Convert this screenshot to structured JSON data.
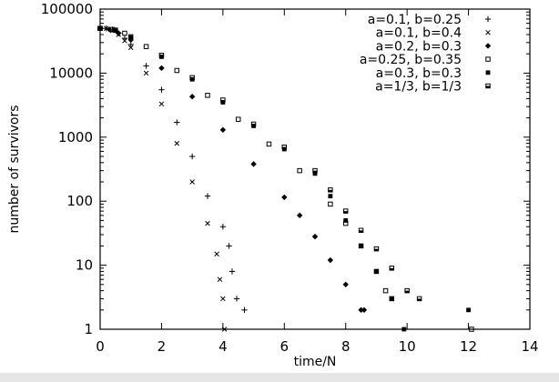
{
  "chart_data": {
    "type": "scatter",
    "title": "",
    "xlabel": "time/N",
    "ylabel": "number of survivors",
    "xlim": [
      0,
      14
    ],
    "ylim": [
      1,
      100000
    ],
    "yscale": "log",
    "grid": false,
    "legend_position": "top-right",
    "x_ticks": [
      0,
      2,
      4,
      6,
      8,
      10,
      12,
      14
    ],
    "x_tick_labels": [
      "0",
      "2",
      "4",
      "6",
      "8",
      "10",
      "12",
      "14"
    ],
    "y_ticks": [
      1,
      10,
      100,
      1000,
      10000,
      100000
    ],
    "y_tick_labels": [
      "1",
      "10",
      "100",
      "1000",
      "10000",
      "100000"
    ],
    "series": [
      {
        "name": "a=0.1, b=0.25",
        "marker": "plus",
        "x": [
          0,
          0.2,
          0.4,
          0.6,
          0.8,
          1.0,
          1.5,
          2.0,
          2.5,
          3.0,
          3.5,
          4.0,
          4.2,
          4.3,
          4.45,
          4.7
        ],
        "y": [
          50000,
          50000,
          48000,
          42000,
          35000,
          28000,
          13000,
          5500,
          1700,
          500,
          120,
          40,
          20,
          8,
          3,
          2
        ]
      },
      {
        "name": "a=0.1, b=0.4",
        "marker": "cross",
        "x": [
          0,
          0.2,
          0.4,
          0.6,
          0.8,
          1.0,
          1.5,
          2.0,
          2.5,
          3.0,
          3.5,
          3.8,
          3.9,
          4.0,
          4.05
        ],
        "y": [
          50000,
          50000,
          46000,
          40000,
          32000,
          25000,
          10000,
          3300,
          800,
          200,
          45,
          15,
          6,
          3,
          1
        ]
      },
      {
        "name": "a=0.2, b=0.3",
        "marker": "diamond",
        "x": [
          0,
          0.3,
          0.6,
          1.0,
          2.0,
          3.0,
          4.0,
          5.0,
          6.0,
          6.5,
          7.0,
          7.5,
          8.0,
          8.5,
          8.6
        ],
        "y": [
          50000,
          48000,
          42000,
          33000,
          12000,
          4300,
          1300,
          380,
          115,
          60,
          28,
          12,
          5,
          2,
          2
        ]
      },
      {
        "name": "a=0.25, b=0.35",
        "marker": "square",
        "x": [
          0,
          0.4,
          0.8,
          1.5,
          2.5,
          3.5,
          4.5,
          5.5,
          6.5,
          7.5,
          8.0,
          8.5,
          9.0,
          9.3,
          9.5,
          12.1
        ],
        "y": [
          50000,
          48000,
          42000,
          26000,
          11000,
          4500,
          1900,
          780,
          300,
          90,
          45,
          20,
          8,
          4,
          3,
          1
        ]
      },
      {
        "name": "a=0.3, b=0.3",
        "marker": "filled-square",
        "x": [
          0,
          0.5,
          1.0,
          2.0,
          3.0,
          4.0,
          5.0,
          6.0,
          7.0,
          7.5,
          8.0,
          8.5,
          9.0,
          9.5,
          9.9,
          12.0
        ],
        "y": [
          50000,
          46000,
          36000,
          18000,
          8000,
          3500,
          1500,
          650,
          270,
          120,
          50,
          20,
          8,
          3,
          1,
          2
        ]
      },
      {
        "name": "a=1/3, b=1/3",
        "marker": "half-square",
        "x": [
          0,
          0.5,
          1.0,
          2.0,
          3.0,
          4.0,
          5.0,
          6.0,
          7.0,
          7.5,
          8.0,
          8.5,
          9.0,
          9.5,
          10.0,
          10.4
        ],
        "y": [
          50000,
          47000,
          37000,
          19000,
          8500,
          3800,
          1600,
          700,
          300,
          150,
          70,
          35,
          18,
          9,
          4,
          3
        ]
      }
    ]
  }
}
